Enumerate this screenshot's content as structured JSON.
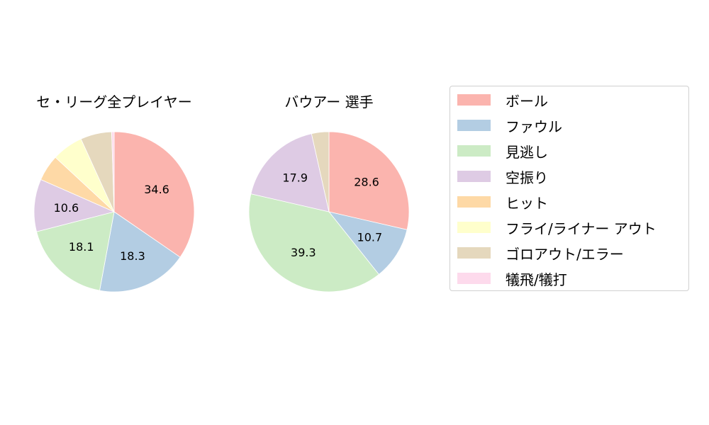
{
  "chart_data": [
    {
      "type": "pie",
      "title": "セ・リーグ全プレイヤー",
      "categories": [
        "ボール",
        "ファウル",
        "見逃し",
        "空振り",
        "ヒット",
        "フライ/ライナー アウト",
        "ゴロアウト/エラー",
        "犠飛/犠打"
      ],
      "values": [
        34.6,
        18.3,
        18.1,
        10.6,
        5.3,
        6.3,
        6.3,
        0.5
      ],
      "data_labels": [
        "34.6",
        "18.3",
        "18.1",
        "10.6",
        "",
        "",
        "",
        ""
      ],
      "start_angle": 90,
      "direction": "clockwise"
    },
    {
      "type": "pie",
      "title": "バウアー  選手",
      "categories": [
        "ボール",
        "ファウル",
        "見逃し",
        "空振り",
        "ヒット",
        "フライ/ライナー アウト",
        "ゴロアウト/エラー",
        "犠飛/犠打"
      ],
      "values": [
        28.6,
        10.7,
        39.3,
        17.9,
        0,
        0,
        3.5,
        0
      ],
      "data_labels": [
        "28.6",
        "10.7",
        "39.3",
        "17.9",
        "",
        "",
        "",
        ""
      ],
      "start_angle": 90,
      "direction": "clockwise"
    }
  ],
  "titles": {
    "left": "セ・リーグ全プレイヤー",
    "right": "バウアー  選手"
  },
  "legend": {
    "position": "right",
    "items": [
      {
        "label": "ボール",
        "color": "#fbb4ae"
      },
      {
        "label": "ファウル",
        "color": "#b3cde3"
      },
      {
        "label": "見逃し",
        "color": "#ccebc5"
      },
      {
        "label": "空振り",
        "color": "#decbe4"
      },
      {
        "label": "ヒット",
        "color": "#fed9a6"
      },
      {
        "label": "フライ/ライナー アウト",
        "color": "#ffffcc"
      },
      {
        "label": "ゴロアウト/エラー",
        "color": "#e5d8bd"
      },
      {
        "label": "犠飛/犠打",
        "color": "#fddaec"
      }
    ]
  }
}
